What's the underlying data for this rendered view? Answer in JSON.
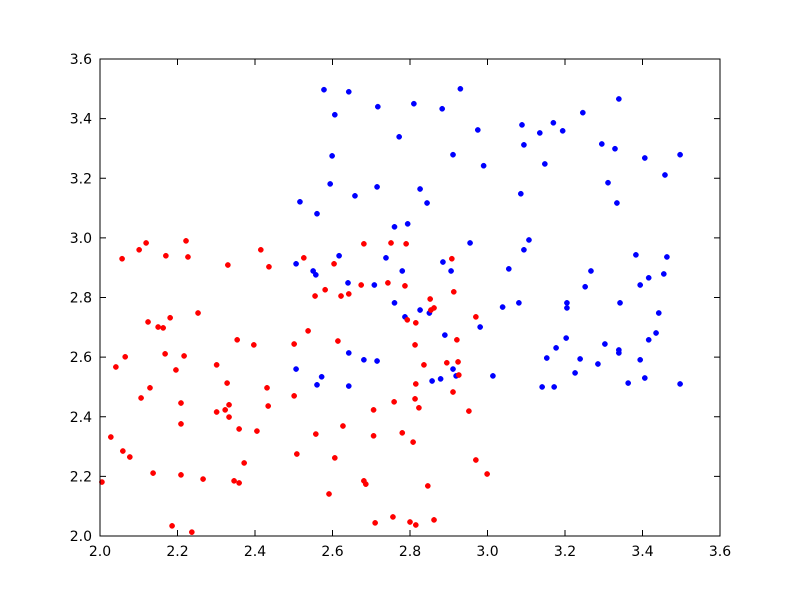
{
  "chart_data": {
    "type": "scatter",
    "xlim": [
      2.0,
      3.6
    ],
    "ylim": [
      2.0,
      3.6
    ],
    "xticks": [
      {
        "value": 2.0,
        "label": "2.0"
      },
      {
        "value": 2.2,
        "label": "2.2"
      },
      {
        "value": 2.4,
        "label": "2.4"
      },
      {
        "value": 2.6,
        "label": "2.6"
      },
      {
        "value": 2.8,
        "label": "2.8"
      },
      {
        "value": 3.0,
        "label": "3.0"
      },
      {
        "value": 3.2,
        "label": "3.2"
      },
      {
        "value": 3.4,
        "label": "3.4"
      },
      {
        "value": 3.6,
        "label": "3.6"
      }
    ],
    "yticks": [
      {
        "value": 2.0,
        "label": "2.0"
      },
      {
        "value": 2.2,
        "label": "2.2"
      },
      {
        "value": 2.4,
        "label": "2.4"
      },
      {
        "value": 2.6,
        "label": "2.6"
      },
      {
        "value": 2.8,
        "label": "2.8"
      },
      {
        "value": 3.0,
        "label": "3.0"
      },
      {
        "value": 3.2,
        "label": "3.2"
      },
      {
        "value": 3.4,
        "label": "3.4"
      },
      {
        "value": 3.6,
        "label": "3.6"
      }
    ],
    "grid": false,
    "series": [
      {
        "color": "#0000ff",
        "x": [
          2.578,
          2.642,
          2.93,
          2.81,
          2.883,
          2.717,
          2.606,
          3.246,
          3.339,
          3.089,
          3.17,
          3.135,
          3.194,
          2.772,
          2.975,
          3.094,
          3.295,
          3.329,
          2.599,
          2.911,
          2.99,
          3.148,
          3.406,
          3.497,
          3.458,
          2.715,
          2.594,
          3.311,
          2.826,
          3.086,
          2.658,
          2.516,
          2.844,
          3.334,
          2.56,
          2.794,
          2.76,
          2.955,
          3.107,
          3.094,
          2.617,
          2.506,
          2.738,
          2.885,
          2.906,
          3.383,
          3.463,
          2.55,
          2.557,
          2.78,
          3.055,
          3.267,
          3.455,
          3.416,
          2.64,
          2.708,
          3.394,
          3.252,
          2.76,
          3.081,
          3.039,
          3.205,
          3.205,
          3.342,
          3.442,
          2.826,
          2.85,
          2.787,
          2.981,
          3.435,
          2.89,
          3.416,
          3.203,
          3.303,
          3.339,
          3.339,
          2.642,
          2.681,
          2.715,
          3.153,
          3.239,
          3.394,
          3.177,
          3.285,
          2.506,
          2.911,
          3.226,
          2.572,
          3.014,
          2.857,
          2.879,
          2.919,
          3.406,
          3.363,
          2.56,
          2.642,
          3.141,
          3.172,
          3.497
        ],
        "y": [
          3.497,
          3.49,
          3.5,
          3.45,
          3.433,
          3.44,
          3.413,
          3.42,
          3.466,
          3.379,
          3.386,
          3.352,
          3.359,
          3.339,
          3.362,
          3.312,
          3.315,
          3.299,
          3.275,
          3.279,
          3.242,
          3.248,
          3.268,
          3.279,
          3.211,
          3.171,
          3.181,
          3.185,
          3.164,
          3.148,
          3.141,
          3.121,
          3.117,
          3.117,
          3.081,
          3.047,
          3.037,
          2.983,
          2.993,
          2.96,
          2.94,
          2.913,
          2.933,
          2.919,
          2.889,
          2.943,
          2.936,
          2.889,
          2.876,
          2.889,
          2.896,
          2.889,
          2.879,
          2.866,
          2.849,
          2.842,
          2.842,
          2.836,
          2.782,
          2.782,
          2.768,
          2.782,
          2.765,
          2.782,
          2.748,
          2.758,
          2.748,
          2.735,
          2.701,
          2.681,
          2.674,
          2.658,
          2.664,
          2.644,
          2.624,
          2.614,
          2.614,
          2.591,
          2.587,
          2.597,
          2.594,
          2.591,
          2.631,
          2.577,
          2.56,
          2.56,
          2.547,
          2.534,
          2.537,
          2.52,
          2.527,
          2.537,
          2.53,
          2.513,
          2.507,
          2.503,
          2.5,
          2.5,
          2.51
        ]
      },
      {
        "color": "#ff0000",
        "x": [
          2.005,
          2.028,
          2.041,
          2.057,
          2.059,
          2.065,
          2.077,
          2.101,
          2.119,
          2.106,
          2.124,
          2.129,
          2.137,
          2.15,
          2.163,
          2.17,
          2.168,
          2.181,
          2.186,
          2.196,
          2.209,
          2.209,
          2.209,
          2.217,
          2.222,
          2.227,
          2.237,
          2.253,
          2.266,
          2.301,
          2.301,
          2.323,
          2.328,
          2.33,
          2.333,
          2.333,
          2.354,
          2.346,
          2.359,
          2.359,
          2.372,
          2.397,
          2.405,
          2.415,
          2.436,
          2.431,
          2.434,
          2.501,
          2.501,
          2.508,
          2.526,
          2.537,
          2.555,
          2.557,
          2.581,
          2.591,
          2.604,
          2.606,
          2.614,
          2.627,
          2.622,
          2.642,
          2.674,
          2.681,
          2.681,
          2.686,
          2.706,
          2.706,
          2.71,
          2.743,
          2.751,
          2.756,
          2.759,
          2.78,
          2.79,
          2.787,
          2.793,
          2.8,
          2.808,
          2.815,
          2.813,
          2.815,
          2.813,
          2.815,
          2.823,
          2.836,
          2.846,
          2.852,
          2.854,
          2.862,
          2.862,
          2.895,
          2.908,
          2.911,
          2.913,
          2.921,
          2.924,
          2.926,
          2.952,
          2.97,
          2.97,
          2.999
        ],
        "y": [
          2.181,
          2.332,
          2.567,
          2.93,
          2.285,
          2.601,
          2.265,
          2.96,
          2.983,
          2.463,
          2.718,
          2.497,
          2.211,
          2.701,
          2.698,
          2.94,
          2.611,
          2.732,
          2.034,
          2.557,
          2.446,
          2.376,
          2.205,
          2.604,
          2.99,
          2.936,
          2.013,
          2.748,
          2.191,
          2.574,
          2.416,
          2.423,
          2.513,
          2.909,
          2.44,
          2.399,
          2.658,
          2.185,
          2.359,
          2.178,
          2.245,
          2.641,
          2.352,
          2.96,
          2.903,
          2.497,
          2.436,
          2.644,
          2.47,
          2.275,
          2.933,
          2.688,
          2.805,
          2.342,
          2.826,
          2.141,
          2.913,
          2.262,
          2.654,
          2.369,
          2.805,
          2.812,
          2.842,
          2.98,
          2.185,
          2.174,
          2.423,
          2.336,
          2.044,
          2.849,
          2.983,
          2.064,
          2.45,
          2.346,
          2.98,
          2.839,
          2.725,
          2.047,
          2.315,
          2.037,
          2.641,
          2.51,
          2.46,
          2.715,
          2.43,
          2.574,
          2.168,
          2.795,
          2.758,
          2.765,
          2.054,
          2.581,
          2.93,
          2.483,
          2.819,
          2.658,
          2.584,
          2.54,
          2.419,
          2.735,
          2.255,
          2.208
        ]
      }
    ]
  }
}
